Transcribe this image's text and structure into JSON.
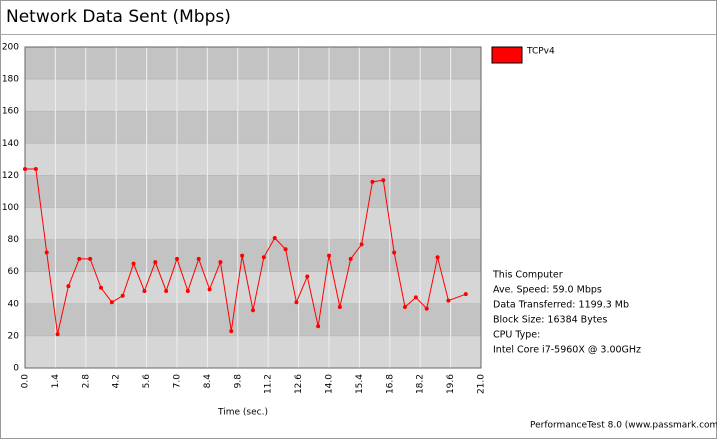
{
  "chart_data": {
    "type": "line",
    "title": "Network Data Sent (Mbps)",
    "x_label": "Time (sec.)",
    "x": [
      0,
      0.5,
      1,
      1.5,
      2,
      2.5,
      3,
      3.5,
      4,
      4.5,
      5,
      5.5,
      6,
      6.5,
      7,
      7.5,
      8,
      8.5,
      9,
      9.5,
      10,
      10.5,
      11,
      11.5,
      12,
      12.5,
      13,
      13.5,
      14,
      14.5,
      15,
      15.5,
      16,
      16.5,
      17,
      17.5,
      18,
      18.5,
      19,
      19.5,
      20.3
    ],
    "series": [
      {
        "name": "TCPv4",
        "color": "#ff0000",
        "values": [
          124,
          124,
          72,
          21,
          51,
          68,
          68,
          50,
          41,
          45,
          65,
          48,
          66,
          48,
          68,
          48,
          68,
          49,
          66,
          23,
          70,
          36,
          69,
          81,
          74,
          41,
          57,
          26,
          70,
          38,
          68,
          77,
          116,
          117,
          72,
          38,
          44,
          37,
          69,
          42,
          46
        ]
      }
    ],
    "xlim": [
      0,
      21
    ],
    "xticks": [
      {
        "value": 0,
        "label": "0.0"
      },
      1.4,
      2.8,
      4.2,
      5.6,
      {
        "value": 7,
        "label": "7.0"
      },
      8.4,
      9.8,
      11.2,
      12.6,
      {
        "value": 14,
        "label": "14.0"
      },
      15.4,
      16.8,
      18.2,
      19.6,
      {
        "value": 21,
        "label": "21.0"
      }
    ],
    "ylim": [
      0,
      200
    ],
    "yticks": [
      0,
      20,
      40,
      60,
      80,
      100,
      120,
      140,
      160,
      180,
      200
    ],
    "band_colors": [
      "#d6d6d6",
      "#c3c3c3"
    ],
    "info": [
      "This Computer",
      "Ave. Speed: 59.0 Mbps",
      "Data Transferred: 1199.3 Mb",
      "Block Size: 16384 Bytes",
      "CPU Type:",
      "Intel Core i7-5960X @ 3.00GHz"
    ],
    "footer": "PerformanceTest 8.0 (www.passmark.com)"
  }
}
